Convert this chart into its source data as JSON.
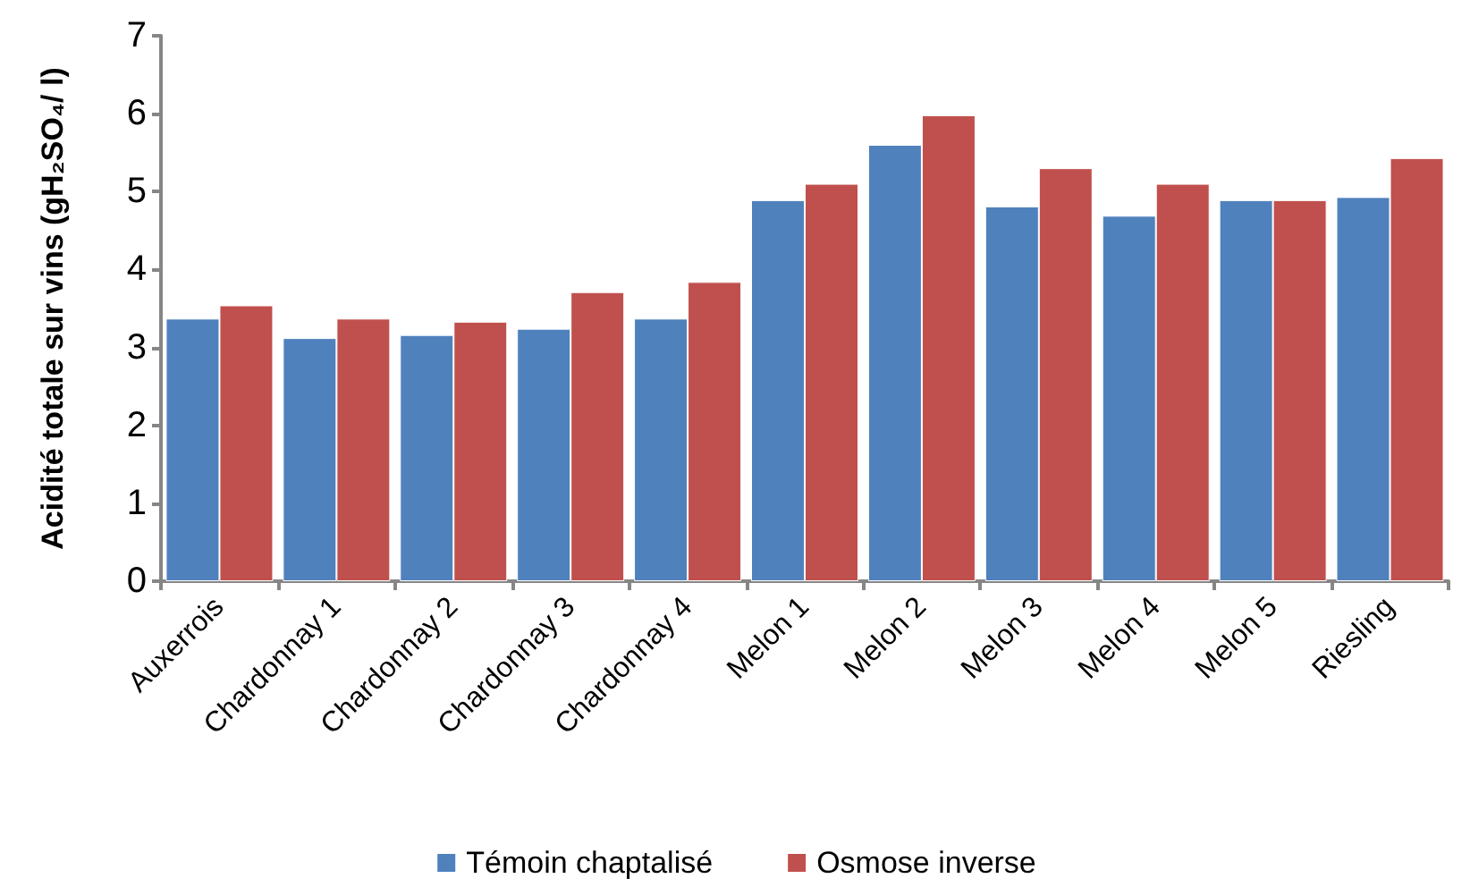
{
  "chart_data": {
    "type": "bar",
    "ylabel": "Acidité totale sur vins (gH₂SO₄/ l)",
    "categories": [
      "Auxerrois",
      "Chardonnay 1",
      "Chardonnay 2",
      "Chardonnay 3",
      "Chardonnay 4",
      "Melon 1",
      "Melon 2",
      "Melon 3",
      "Melon 4",
      "Melon 5",
      "Riesling"
    ],
    "series": [
      {
        "name": "Témoin chaptalisé",
        "color": "#4f81bd",
        "values": [
          3.37,
          3.12,
          3.16,
          3.24,
          3.37,
          4.89,
          5.6,
          4.81,
          4.69,
          4.89,
          4.93
        ]
      },
      {
        "name": "Osmose inverse",
        "color": "#c0504d",
        "values": [
          3.54,
          3.37,
          3.33,
          3.71,
          3.84,
          5.1,
          5.98,
          5.3,
          5.1,
          4.89,
          5.43
        ]
      }
    ],
    "ylim": [
      0,
      7
    ],
    "yticks": [
      0,
      1,
      2,
      3,
      4,
      5,
      6,
      7
    ],
    "grid": false,
    "legend": "bottom"
  }
}
